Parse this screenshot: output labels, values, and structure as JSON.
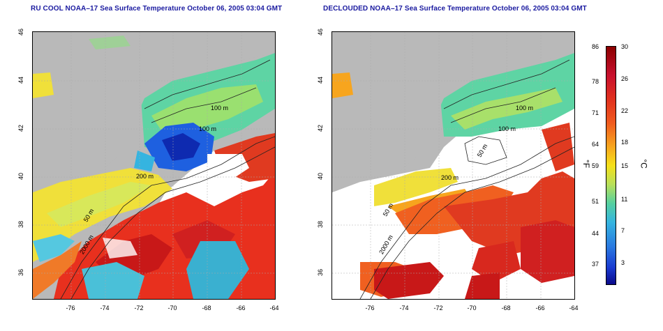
{
  "titles": {
    "left": "RU COOL NOAA–17 Sea Surface Temperature October 06, 2005 03:04 GMT",
    "right": "DECLOUDED NOAA–17 Sea Surface Temperature October 06, 2005 03:04 GMT"
  },
  "axes": {
    "y_ticks": [
      "46",
      "44",
      "42",
      "40",
      "38",
      "36"
    ],
    "x_ticks": [
      "-76",
      "-74",
      "-72",
      "-70",
      "-68",
      "-66",
      "-64"
    ]
  },
  "contours": {
    "left": [
      "100 m",
      "100 m",
      "200 m",
      "50 m",
      "2000 m"
    ],
    "right": [
      "100 m",
      "100 m",
      "50 m",
      "200 m",
      "50 m",
      "2000 m"
    ]
  },
  "colorbar": {
    "fahrenheit_unit": "°F",
    "celsius_unit": "°C",
    "fahrenheit_ticks": [
      "86",
      "78",
      "71",
      "64",
      "59",
      "51",
      "44",
      "37"
    ],
    "celsius_ticks": [
      "30",
      "26",
      "22",
      "18",
      "15",
      "11",
      "7",
      "3"
    ]
  },
  "colors": {
    "land": "#b9b9b9",
    "title": "#1a1aa0",
    "warm": "#e0301e",
    "cool": "#1a4ad0"
  }
}
